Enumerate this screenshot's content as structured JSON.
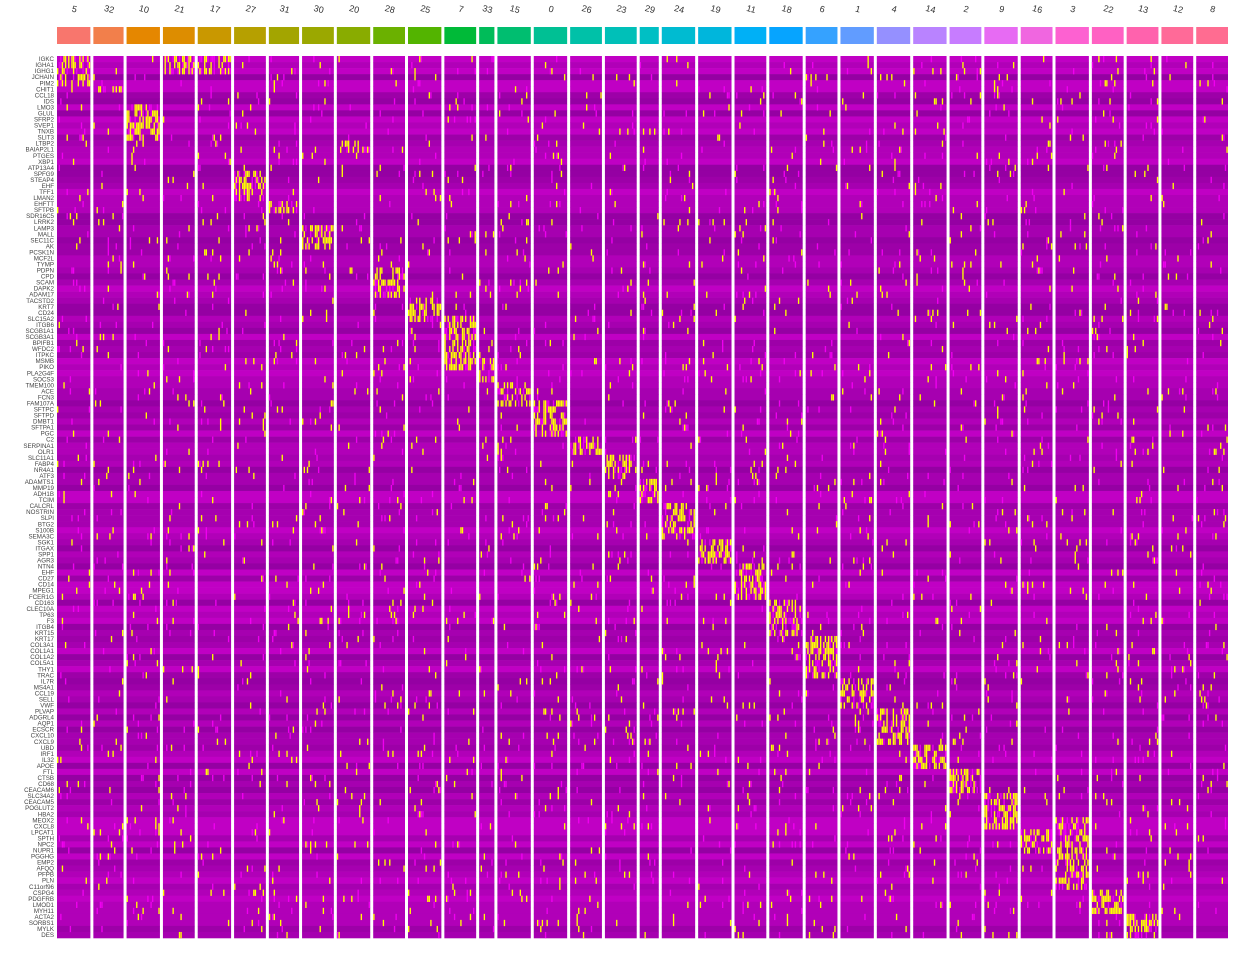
{
  "chart_data": {
    "type": "heatmap",
    "title": "",
    "xlabel": "",
    "ylabel": "",
    "legend": "none",
    "clusters": [
      "5",
      "32",
      "10",
      "21",
      "17",
      "27",
      "31",
      "30",
      "20",
      "28",
      "25",
      "7",
      "33",
      "15",
      "0",
      "26",
      "23",
      "29",
      "24",
      "19",
      "11",
      "18",
      "6",
      "1",
      "4",
      "14",
      "2",
      "9",
      "16",
      "3",
      "22",
      "13",
      "12",
      "8"
    ],
    "cluster_colors": [
      "#F8766D",
      "#F27F4B",
      "#E58700",
      "#DD8D00",
      "#C99800",
      "#B6A000",
      "#A3A500",
      "#9BA800",
      "#89AC00",
      "#6BB100",
      "#53B400",
      "#00BA38",
      "#00BC59",
      "#00BE70",
      "#00C094",
      "#00C1A8",
      "#00C0B8",
      "#00BFC4",
      "#00BBD1",
      "#00B6DC",
      "#00B0F6",
      "#06A4FF",
      "#35A2FF",
      "#619CFF",
      "#9590FF",
      "#B983FF",
      "#C77CFF",
      "#E76BF3",
      "#F066E0",
      "#FD61D1",
      "#FF61C3",
      "#FF62AD",
      "#FF6A98",
      "#FF6C91"
    ],
    "genes": [
      "IGKC",
      "IGHA1",
      "IGHG1",
      "JCHAIN",
      "PIM2",
      "CHIT1",
      "CCL18",
      "IDS",
      "LMO3",
      "GLUL",
      "SFRP2",
      "SVEP1",
      "TNXB",
      "SLIT3",
      "LTBP2",
      "BAIAP2L1",
      "PTGES",
      "XBP1",
      "ATP13A4",
      "SPFG9",
      "STEAP4",
      "EHF",
      "TFF1",
      "LMAN2",
      "EHFTT",
      "SFTPB",
      "SDR16C5",
      "LRRK2",
      "LAMP3",
      "MALL",
      "SEC11C",
      "AK",
      "PCSK1N",
      "MCF2L",
      "TYMP",
      "PDPN",
      "CPD",
      "SCAM",
      "DAPK2",
      "ADAM17",
      "TACSTD2",
      "KRT7",
      "CD24",
      "SLC15A2",
      "ITGB6",
      "SCGB1A1",
      "SCGB3A1",
      "BPIFB1",
      "WFDC2",
      "ITPKC",
      "MSMB",
      "PIKO",
      "PLA2G4F",
      "SOCS3",
      "TMEM100",
      "ACE",
      "FCN3",
      "FAM107A",
      "SFTPC",
      "SFTPD",
      "DMBT1",
      "SFTPA1",
      "PGC",
      "C2",
      "SERPINA1",
      "OLR1",
      "SLC11A1",
      "FABP4",
      "NR4A1",
      "ATF3",
      "ADAMTS1",
      "MMP19",
      "ADH1B",
      "TCIM",
      "CALCRL",
      "NOSTRIN",
      "SLPI",
      "BTG2",
      "S100B",
      "SEMA3C",
      "SGK1",
      "ITGAX",
      "SPP1",
      "AGR3",
      "NTN4",
      "EHF",
      "CD27",
      "CD14",
      "MPEG1",
      "FCER1G",
      "CD163",
      "CLEC10A",
      "TP63",
      "F3",
      "ITGB4",
      "KRT15",
      "KRT17",
      "COL3A1",
      "COL1A1",
      "COL1A2",
      "COL5A1",
      "THY1",
      "TRAC",
      "IL7R",
      "MS4A1",
      "CCL19",
      "SELL",
      "VWF",
      "PLVAP",
      "ADGRL4",
      "AQP1",
      "ECSCR",
      "CXCL10",
      "CXCL9",
      "UBD",
      "IRF1",
      "IL32",
      "APOE",
      "FTL",
      "CTSB",
      "CD68",
      "CEACAM6",
      "SLC34A2",
      "CEACAM5",
      "POGLUT2",
      "HBA2",
      "MEOX2",
      "CXCL8",
      "LPCAT1",
      "SPTH",
      "NPC2",
      "NUPR1",
      "PGGHG",
      "EMP2",
      "AFQQ",
      "PFPB",
      "PLN",
      "C11orf96",
      "CSPG4",
      "PDGFRB",
      "LMOD1",
      "MYH11",
      "ACTA2",
      "SORBS1",
      "MYLK",
      "DES"
    ],
    "color_scale": {
      "low": "#8b0095",
      "mid": "#cc00cc",
      "high": "#ffff00"
    },
    "marker_gene_ranges": [
      [
        0,
        5
      ],
      [
        5,
        6
      ],
      [
        8,
        14
      ],
      [
        0,
        3
      ],
      [
        0,
        3
      ],
      [
        19,
        24
      ],
      [
        24,
        26
      ],
      [
        28,
        32
      ],
      [
        14,
        16
      ],
      [
        35,
        40
      ],
      [
        40,
        44
      ],
      [
        43,
        52
      ],
      [
        50,
        54
      ],
      [
        54,
        58
      ],
      [
        57,
        63
      ],
      [
        63,
        66
      ],
      [
        66,
        70
      ],
      [
        70,
        74
      ],
      [
        74,
        80
      ],
      [
        80,
        84
      ],
      [
        84,
        90
      ],
      [
        90,
        96
      ],
      [
        96,
        103
      ],
      [
        103,
        108
      ],
      [
        108,
        114
      ],
      [
        114,
        118
      ],
      [
        118,
        122
      ],
      [
        122,
        128
      ],
      [
        128,
        132
      ],
      [
        126,
        138
      ],
      [
        138,
        142
      ],
      [
        142,
        146
      ],
      [
        146,
        150
      ],
      [
        146,
        152
      ]
    ]
  }
}
